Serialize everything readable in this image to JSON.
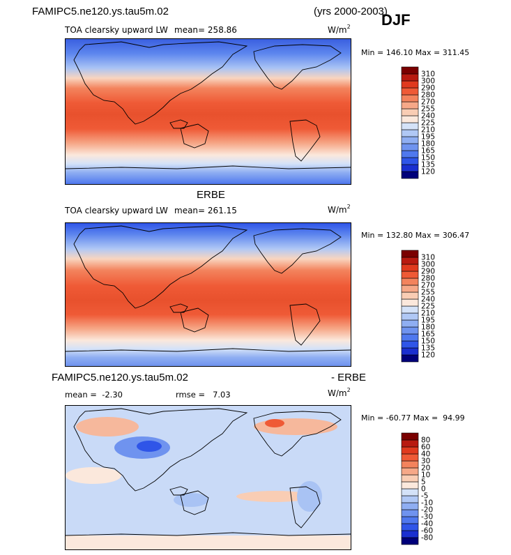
{
  "header": {
    "case_name": "FAMIPC5.ne120.ys.tau5m.02",
    "years": "(yrs 2000-2003)",
    "season": "DJF"
  },
  "chart_data": [
    {
      "type": "heatmap",
      "panel": "model",
      "title": "",
      "variable": "TOA clearsky upward LW",
      "mean_label": "mean=",
      "mean_value": "258.86",
      "units_base": "W/m",
      "units_exp": "2",
      "min_label": "Min =",
      "min_value": "146.10",
      "max_label": "Max =",
      "max_value": "311.45",
      "colorbar_levels": [
        "120",
        "135",
        "150",
        "165",
        "180",
        "195",
        "210",
        "225",
        "240",
        "255",
        "270",
        "280",
        "290",
        "300",
        "310"
      ],
      "colorbar_colors": [
        "#00007a",
        "#1a2fd0",
        "#2f55e8",
        "#4f78ee",
        "#6f93ef",
        "#8faef2",
        "#b0c8f5",
        "#d4e2f8",
        "#fbe8dc",
        "#f9cdb4",
        "#f6a888",
        "#f3835d",
        "#ef5a36",
        "#e03a1e",
        "#b81a10",
        "#7a0000"
      ]
    },
    {
      "type": "heatmap",
      "panel": "obs",
      "title": "ERBE",
      "variable": "TOA clearsky upward LW",
      "mean_label": "mean=",
      "mean_value": "261.15",
      "units_base": "W/m",
      "units_exp": "2",
      "min_label": "Min =",
      "min_value": "132.80",
      "max_label": "Max =",
      "max_value": "306.47",
      "colorbar_levels": [
        "120",
        "135",
        "150",
        "165",
        "180",
        "195",
        "210",
        "225",
        "240",
        "255",
        "270",
        "280",
        "290",
        "300",
        "310"
      ],
      "colorbar_colors": [
        "#00007a",
        "#1a2fd0",
        "#2f55e8",
        "#4f78ee",
        "#6f93ef",
        "#8faef2",
        "#b0c8f5",
        "#d4e2f8",
        "#fbe8dc",
        "#f9cdb4",
        "#f6a888",
        "#f3835d",
        "#ef5a36",
        "#e03a1e",
        "#b81a10",
        "#7a0000"
      ]
    },
    {
      "type": "heatmap",
      "panel": "difference",
      "title_left": "FAMIPC5.ne120.ys.tau5m.02",
      "title_right": "- ERBE",
      "mean_label": "mean =",
      "mean_value": "-2.30",
      "rmse_label": "rmse =",
      "rmse_value": "7.03",
      "units_base": "W/m",
      "units_exp": "2",
      "min_label": "Min =",
      "min_value": "-60.77",
      "max_label": "Max =",
      "max_value": "94.99",
      "colorbar_levels": [
        "-80",
        "-60",
        "-40",
        "-30",
        "-20",
        "-10",
        "-5",
        "0",
        "5",
        "10",
        "20",
        "30",
        "40",
        "60",
        "80"
      ],
      "colorbar_colors": [
        "#00007a",
        "#1a2fd0",
        "#2f55e8",
        "#4f78ee",
        "#6f93ef",
        "#8faef2",
        "#b0c8f5",
        "#d4e2f8",
        "#fbe8dc",
        "#f9cdb4",
        "#f6a888",
        "#f3835d",
        "#ef5a36",
        "#e03a1e",
        "#b81a10",
        "#7a0000"
      ]
    }
  ]
}
